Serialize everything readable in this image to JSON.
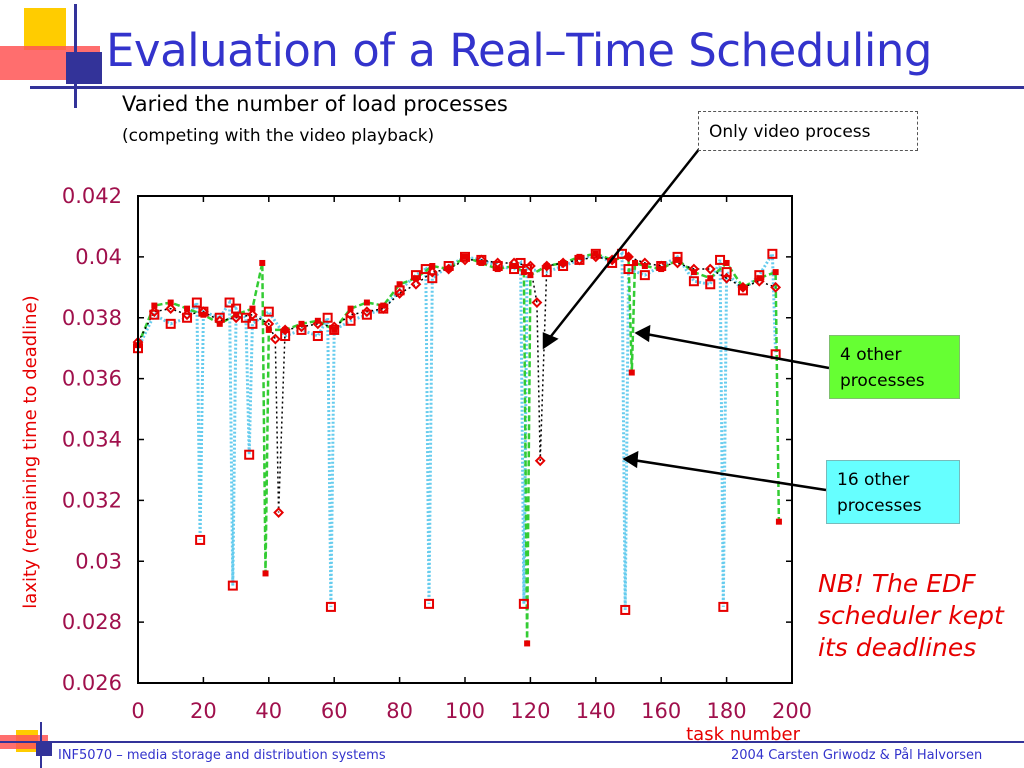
{
  "slide": {
    "title": "Evaluation of a Real–Time Scheduling",
    "subtitle": "Varied the number of load processes",
    "subnote": "(competing with the video playback)",
    "callouts": {
      "video": "Only video process",
      "four": "4 other processes",
      "sixteen": "16 other processes"
    },
    "note": "NB! The EDF scheduler kept its deadlines",
    "footer_left": "INF5070 – media storage and distribution systems",
    "footer_right": "2004  Carsten Griwodz & Pål Halvorsen"
  },
  "colors": {
    "title": "#3333cc",
    "deco_yellow": "#ffcc00",
    "deco_red": "#ff5050",
    "deco_blue": "#333399",
    "series_16": "#66ccee",
    "series_4": "#33cc33",
    "series_video": "#000000",
    "marker": "#e60000",
    "callout_4": "#66ff33",
    "callout_16": "#66ffff",
    "nb_text": "#e60000",
    "axis_text": "#a0104c"
  },
  "chart_data": {
    "type": "line",
    "title": "",
    "xlabel": "task number",
    "ylabel": "laxity (remaining time to deadline)",
    "xlim": [
      0,
      200
    ],
    "ylim": [
      0.026,
      0.042
    ],
    "x_ticks": [
      "0",
      "20",
      "40",
      "60",
      "80",
      "100",
      "120",
      "140",
      "160",
      "180",
      "200"
    ],
    "y_ticks": [
      "0.026",
      "0.028",
      "0.03",
      "0.032",
      "0.034",
      "0.036",
      "0.038",
      "0.04",
      "0.042"
    ],
    "grid": false,
    "series": [
      {
        "name": "Only video process",
        "style": "dotted",
        "x": [
          0,
          5,
          10,
          15,
          20,
          25,
          30,
          35,
          40,
          42,
          43,
          45,
          50,
          55,
          60,
          65,
          70,
          75,
          80,
          85,
          90,
          95,
          100,
          105,
          110,
          115,
          120,
          122,
          123,
          125,
          130,
          135,
          140,
          145,
          150,
          155,
          160,
          165,
          170,
          175,
          180,
          185,
          190,
          195
        ],
        "y": [
          0.0372,
          0.0382,
          0.0383,
          0.0381,
          0.0382,
          0.0379,
          0.038,
          0.0381,
          0.0378,
          0.0373,
          0.0316,
          0.0376,
          0.0377,
          0.0378,
          0.0377,
          0.0381,
          0.0382,
          0.0383,
          0.0388,
          0.0391,
          0.0395,
          0.0396,
          0.0399,
          0.0399,
          0.0398,
          0.0398,
          0.0397,
          0.0385,
          0.0333,
          0.0397,
          0.0398,
          0.0399,
          0.04,
          0.0399,
          0.04,
          0.0398,
          0.0397,
          0.0398,
          0.0396,
          0.0396,
          0.0393,
          0.039,
          0.0392,
          0.039
        ]
      },
      {
        "name": "4 other processes",
        "style": "dashed",
        "x": [
          0,
          5,
          10,
          15,
          20,
          25,
          30,
          35,
          38,
          39,
          40,
          45,
          50,
          55,
          60,
          65,
          70,
          75,
          80,
          85,
          90,
          95,
          100,
          105,
          110,
          115,
          118,
          119,
          120,
          125,
          130,
          135,
          140,
          145,
          150,
          151,
          152,
          155,
          160,
          165,
          170,
          175,
          180,
          185,
          190,
          195,
          196
        ],
        "y": [
          0.0371,
          0.0384,
          0.0385,
          0.0383,
          0.0381,
          0.0378,
          0.0381,
          0.0383,
          0.0398,
          0.0296,
          0.0376,
          0.0376,
          0.0378,
          0.0379,
          0.0376,
          0.0383,
          0.0385,
          0.0384,
          0.0391,
          0.0393,
          0.0397,
          0.0396,
          0.04,
          0.0398,
          0.0396,
          0.0397,
          0.0395,
          0.0273,
          0.0394,
          0.0397,
          0.0398,
          0.04,
          0.0401,
          0.0399,
          0.04,
          0.0362,
          0.0398,
          0.0397,
          0.0396,
          0.0399,
          0.0395,
          0.0393,
          0.0398,
          0.039,
          0.0393,
          0.0395,
          0.0313
        ]
      },
      {
        "name": "16 other processes",
        "style": "dotted",
        "x": [
          0,
          5,
          10,
          15,
          18,
          19,
          20,
          25,
          28,
          29,
          30,
          33,
          34,
          35,
          40,
          45,
          50,
          55,
          58,
          59,
          60,
          65,
          70,
          75,
          80,
          85,
          88,
          89,
          90,
          95,
          100,
          105,
          110,
          115,
          117,
          118,
          119,
          125,
          130,
          135,
          140,
          145,
          148,
          149,
          150,
          155,
          160,
          165,
          170,
          175,
          178,
          179,
          180,
          185,
          190,
          194,
          195
        ],
        "y": [
          0.037,
          0.0381,
          0.0378,
          0.038,
          0.0385,
          0.0307,
          0.0382,
          0.038,
          0.0385,
          0.0292,
          0.0383,
          0.038,
          0.0335,
          0.0378,
          0.0382,
          0.0374,
          0.0376,
          0.0374,
          0.038,
          0.0285,
          0.0376,
          0.0379,
          0.0381,
          0.0383,
          0.0389,
          0.0394,
          0.0396,
          0.0286,
          0.0393,
          0.0397,
          0.04,
          0.0399,
          0.0397,
          0.0396,
          0.0398,
          0.0286,
          0.0396,
          0.0395,
          0.0397,
          0.0399,
          0.0401,
          0.0398,
          0.0401,
          0.0284,
          0.0396,
          0.0394,
          0.0397,
          0.04,
          0.0392,
          0.0391,
          0.0399,
          0.0285,
          0.0395,
          0.0389,
          0.0394,
          0.0401,
          0.0368
        ]
      }
    ]
  }
}
